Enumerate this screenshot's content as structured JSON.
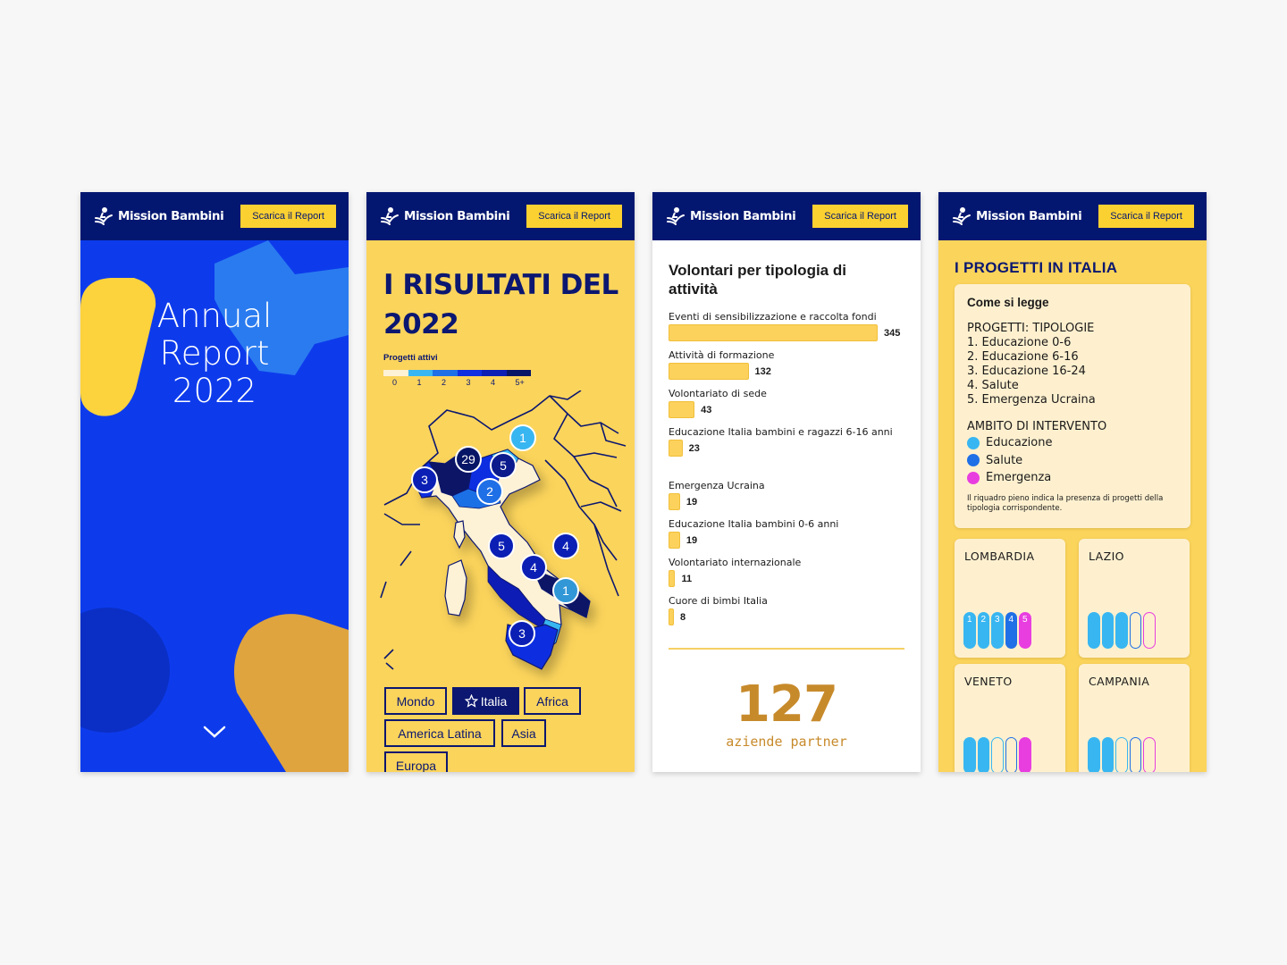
{
  "header": {
    "brand": "Mission Bambini",
    "download_label": "Scarica il Report"
  },
  "screen1": {
    "title_line1": "Annual",
    "title_line2": "Report",
    "title_line3": "2022"
  },
  "screen2": {
    "title": "I RISULTATI DEL 2022",
    "legend_title": "Progetti attivi",
    "legend_ticks": [
      "0",
      "1",
      "2",
      "3",
      "4",
      "5+"
    ],
    "legend_colors": [
      "#fdf1d6",
      "#38b6f1",
      "#1f6fe6",
      "#0f2fe0",
      "#0b1fb5",
      "#071566"
    ],
    "markers": [
      "1",
      "29",
      "5",
      "3",
      "2",
      "5",
      "4",
      "4",
      "1",
      "3"
    ],
    "tabs": [
      "Mondo",
      "Italia",
      "Africa",
      "America Latina",
      "Asia",
      "Europa"
    ]
  },
  "screen3": {
    "title": "Volontari per tipologia di attività",
    "bars": [
      {
        "label": "Eventi di sensibilizzazione e raccolta fondi",
        "value": "345",
        "v": 345
      },
      {
        "label": "Attività di formazione",
        "value": "132",
        "v": 132
      },
      {
        "label": "Volontariato di sede",
        "value": "43",
        "v": 43
      },
      {
        "label": "Educazione Italia bambini e ragazzi 6-16 anni",
        "value": "23",
        "v": 23
      },
      {
        "label": "Emergenza Ucraina",
        "value": "19",
        "v": 19
      },
      {
        "label": "Educazione Italia bambini 0-6 anni",
        "value": "19",
        "v": 19
      },
      {
        "label": "Volontariato internazionale",
        "value": "11",
        "v": 11
      },
      {
        "label": "Cuore di bimbi Italia",
        "value": "8",
        "v": 8
      }
    ],
    "stat_value": "127",
    "stat_label": "aziende partner"
  },
  "screen4": {
    "title": "I PROGETTI IN ITALIA",
    "howto_title": "Come si legge",
    "types_heading": "PROGETTI: TIPOLOGIE",
    "types": [
      "1. Educazione 0-6",
      "2. Educazione 6-16",
      "3. Educazione 16-24",
      "4. Salute",
      "5. Emergenza Ucraina"
    ],
    "scope_heading": "AMBITO DI INTERVENTO",
    "scopes": [
      {
        "label": "Educazione",
        "color": "#38b6f1"
      },
      {
        "label": "Salute",
        "color": "#1f6fe6"
      },
      {
        "label": "Emergenza",
        "color": "#e83ee0"
      }
    ],
    "note": "Il riquadro pieno indica la presenza di progetti della tipologia corrispondente.",
    "regions": [
      {
        "name": "LOMBARDIA",
        "filled": [
          true,
          true,
          true,
          true,
          true
        ],
        "numbers": [
          "1",
          "2",
          "3",
          "4",
          "5"
        ]
      },
      {
        "name": "LAZIO",
        "filled": [
          true,
          true,
          true,
          false,
          false
        ]
      },
      {
        "name": "VENETO",
        "filled": [
          true,
          true,
          false,
          false,
          true
        ]
      },
      {
        "name": "CAMPANIA",
        "filled": [
          true,
          true,
          false,
          false,
          false
        ]
      }
    ]
  }
}
